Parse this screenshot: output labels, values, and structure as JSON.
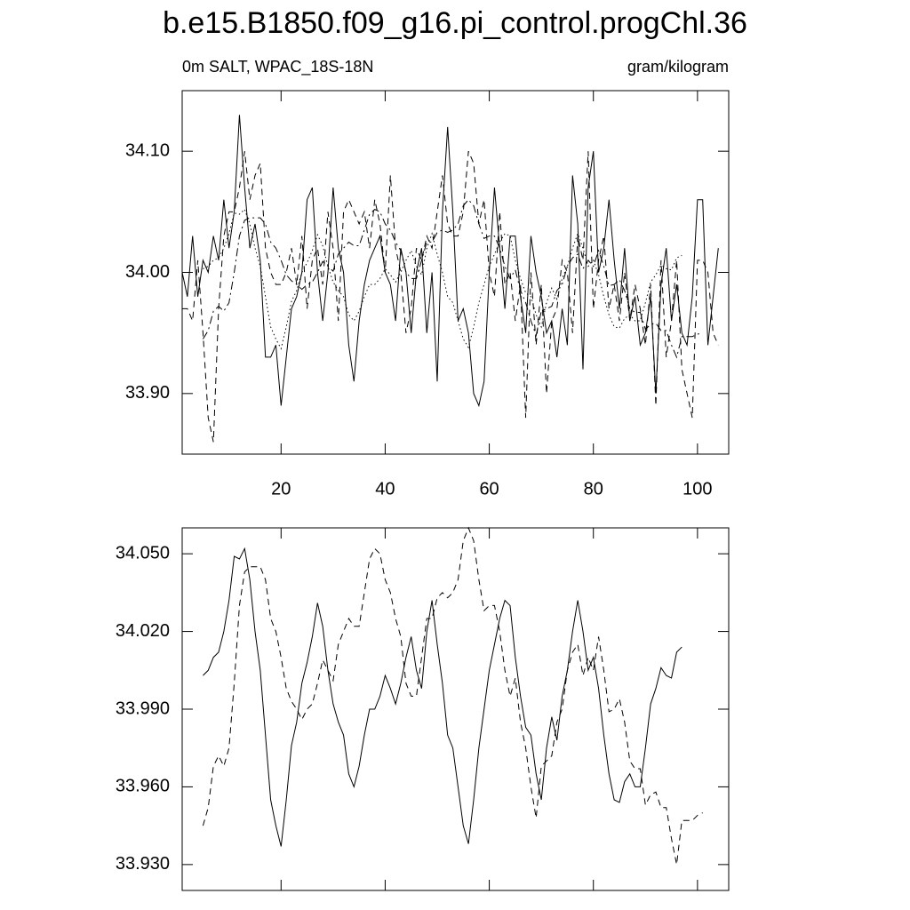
{
  "chart_data": [
    {
      "type": "line",
      "title": "b.e15.B1850.f09_g16.pi_control.progChl.36",
      "subtitle": "0m SALT, WPAC_18S-18N",
      "units": "gram/kilogram",
      "xlim": [
        1,
        106
      ],
      "xticks": [
        20,
        40,
        60,
        80,
        100
      ],
      "ylim": [
        33.85,
        34.15
      ],
      "yticks": [
        {
          "value": 34.1,
          "label": "34.10"
        },
        {
          "value": 34.0,
          "label": "34.00"
        },
        {
          "value": 33.9,
          "label": "33.90"
        }
      ],
      "x": [
        1,
        2,
        3,
        4,
        5,
        6,
        7,
        8,
        9,
        10,
        11,
        12,
        13,
        14,
        15,
        16,
        17,
        18,
        19,
        20,
        21,
        22,
        23,
        24,
        25,
        26,
        27,
        28,
        29,
        30,
        31,
        32,
        33,
        34,
        35,
        36,
        37,
        38,
        39,
        40,
        41,
        42,
        43,
        44,
        45,
        46,
        47,
        48,
        49,
        50,
        51,
        52,
        53,
        54,
        55,
        56,
        57,
        58,
        59,
        60,
        61,
        62,
        63,
        64,
        65,
        66,
        67,
        68,
        69,
        70,
        71,
        72,
        73,
        74,
        75,
        76,
        77,
        78,
        79,
        80,
        81,
        82,
        83,
        84,
        85,
        86,
        87,
        88,
        89,
        90,
        91,
        92,
        93,
        94,
        95,
        96,
        97,
        98,
        99,
        100,
        101,
        102,
        103,
        104
      ],
      "series": [
        {
          "color": "#000000",
          "line_style": "solid",
          "values": [
            34.0,
            33.98,
            34.03,
            33.98,
            34.01,
            34.0,
            34.03,
            34.01,
            34.06,
            34.02,
            34.05,
            34.13,
            34.07,
            34.02,
            34.04,
            34.01,
            33.93,
            33.93,
            33.94,
            33.89,
            33.93,
            33.97,
            33.98,
            34.0,
            34.06,
            34.07,
            34.0,
            33.96,
            34.0,
            34.07,
            34.02,
            34.0,
            33.94,
            33.91,
            33.96,
            33.99,
            34.01,
            34.02,
            34.03,
            34.0,
            33.99,
            33.96,
            34.02,
            34.0,
            33.95,
            34.0,
            34.02,
            33.95,
            34.0,
            33.91,
            34.05,
            34.12,
            34.05,
            33.96,
            33.97,
            33.95,
            33.9,
            33.89,
            33.91,
            34.0,
            34.07,
            34.02,
            33.97,
            34.03,
            34.03,
            33.98,
            33.95,
            34.03,
            34.0,
            33.98,
            33.95,
            33.96,
            33.93,
            33.97,
            33.94,
            34.08,
            34.04,
            33.92,
            34.07,
            34.1,
            34.0,
            34.02,
            34.06,
            34.01,
            33.97,
            34.02,
            33.96,
            33.98,
            33.94,
            33.95,
            33.98,
            33.9,
            33.99,
            34.02,
            33.96,
            33.99,
            33.95,
            33.94,
            33.98,
            34.06,
            34.06,
            33.94,
            33.98,
            34.02
          ]
        },
        {
          "color": "#000000",
          "line_style": "dashed",
          "values": [
            33.97,
            33.97,
            33.96,
            34.01,
            33.95,
            33.88,
            33.86,
            33.97,
            34.03,
            34.05,
            34.05,
            34.07,
            34.1,
            34.06,
            34.08,
            34.09,
            34.02,
            34.0,
            33.99,
            33.99,
            34.0,
            34.02,
            33.99,
            34.03,
            33.97,
            34.01,
            34.02,
            33.99,
            34.05,
            34.02,
            33.96,
            34.05,
            34.06,
            34.05,
            34.04,
            34.05,
            34.02,
            34.06,
            34.04,
            34.0,
            34.08,
            34.02,
            34.0,
            33.95,
            33.97,
            34.02,
            34.01,
            34.03,
            34.02,
            34.05,
            34.08,
            34.04,
            34.03,
            34.03,
            34.05,
            34.1,
            34.09,
            34.04,
            34.06,
            34.0,
            33.98,
            34.05,
            33.99,
            34.0,
            33.96,
            33.99,
            33.88,
            34.0,
            33.94,
            33.99,
            33.9,
            33.96,
            33.97,
            34.01,
            34.0,
            33.95,
            34.03,
            34.01,
            34.1,
            33.97,
            34.01,
            34.03,
            33.97,
            33.99,
            33.96,
            34.0,
            33.96,
            33.99,
            33.97,
            33.94,
            33.99,
            33.89,
            34.01,
            33.93,
            33.96,
            34.01,
            33.92,
            33.9,
            33.88,
            34.01,
            34.01,
            34.0,
            33.95,
            33.94
          ]
        },
        {
          "color": "#000000",
          "line_style": "dotted",
          "values": [
            null,
            null,
            null,
            null,
            34.003,
            34.005,
            34.01,
            34.012,
            34.02,
            34.032,
            34.049,
            34.048,
            34.052,
            34.04,
            34.02,
            34.005,
            33.98,
            33.955,
            33.945,
            33.937,
            33.955,
            33.976,
            33.985,
            34.0,
            34.008,
            34.018,
            34.031,
            34.022,
            34.005,
            33.992,
            33.985,
            33.98,
            33.965,
            33.96,
            33.968,
            33.98,
            33.99,
            33.99,
            33.995,
            34.003,
            33.998,
            33.992,
            34.0,
            34.01,
            34.018,
            34.005,
            33.998,
            34.02,
            34.032,
            34.015,
            34.0,
            33.98,
            33.975,
            33.96,
            33.945,
            33.938,
            33.955,
            33.975,
            33.99,
            34.005,
            34.015,
            34.025,
            34.032,
            34.03,
            34.01,
            33.995,
            33.983,
            33.98,
            33.965,
            33.955,
            33.975,
            33.987,
            33.978,
            33.995,
            34.005,
            34.02,
            34.032,
            34.02,
            34.005,
            34.01,
            33.998,
            33.98,
            33.965,
            33.955,
            33.954,
            33.962,
            33.965,
            33.96,
            33.96,
            33.975,
            33.992,
            33.998,
            34.006,
            34.003,
            34.002,
            34.012,
            34.014,
            null,
            null,
            null,
            null,
            null,
            null,
            null
          ]
        },
        {
          "color": "#000000",
          "line_style": "dashdot",
          "values": [
            null,
            null,
            null,
            null,
            33.945,
            33.952,
            33.968,
            33.972,
            33.968,
            33.975,
            34.0,
            34.03,
            34.043,
            34.045,
            34.045,
            34.045,
            34.04,
            34.025,
            34.02,
            34.01,
            33.998,
            33.993,
            33.99,
            33.986,
            33.99,
            33.992,
            34.0,
            34.009,
            34.005,
            34.001,
            34.015,
            34.02,
            34.025,
            34.022,
            34.022,
            34.035,
            34.048,
            34.052,
            34.05,
            34.04,
            34.035,
            34.025,
            34.018,
            34.0,
            33.995,
            33.995,
            34.01,
            34.025,
            34.025,
            34.033,
            34.035,
            34.033,
            34.035,
            34.04,
            34.055,
            34.06,
            34.055,
            34.04,
            34.028,
            34.03,
            34.03,
            34.02,
            34.005,
            33.995,
            34.002,
            33.985,
            33.975,
            33.96,
            33.948,
            33.968,
            33.97,
            33.972,
            33.985,
            33.99,
            34.005,
            34.012,
            34.015,
            34.003,
            34.01,
            34.005,
            34.018,
            34.005,
            33.989,
            33.99,
            33.994,
            33.985,
            33.97,
            33.967,
            33.967,
            33.953,
            33.957,
            33.958,
            33.952,
            33.952,
            33.94,
            33.93,
            33.947,
            33.947,
            33.947,
            33.949,
            33.95,
            null,
            null,
            null
          ]
        }
      ]
    },
    {
      "type": "line",
      "xlim": [
        1,
        106
      ],
      "xticks": [
        20,
        40,
        60,
        80,
        100
      ],
      "ylim": [
        33.92,
        34.06
      ],
      "yticks": [
        {
          "value": 34.05,
          "label": "34.050"
        },
        {
          "value": 34.02,
          "label": "34.020"
        },
        {
          "value": 33.99,
          "label": "33.990"
        },
        {
          "value": 33.96,
          "label": "33.960"
        },
        {
          "value": 33.93,
          "label": "33.930"
        }
      ],
      "x": [
        1,
        2,
        3,
        4,
        5,
        6,
        7,
        8,
        9,
        10,
        11,
        12,
        13,
        14,
        15,
        16,
        17,
        18,
        19,
        20,
        21,
        22,
        23,
        24,
        25,
        26,
        27,
        28,
        29,
        30,
        31,
        32,
        33,
        34,
        35,
        36,
        37,
        38,
        39,
        40,
        41,
        42,
        43,
        44,
        45,
        46,
        47,
        48,
        49,
        50,
        51,
        52,
        53,
        54,
        55,
        56,
        57,
        58,
        59,
        60,
        61,
        62,
        63,
        64,
        65,
        66,
        67,
        68,
        69,
        70,
        71,
        72,
        73,
        74,
        75,
        76,
        77,
        78,
        79,
        80,
        81,
        82,
        83,
        84,
        85,
        86,
        87,
        88,
        89,
        90,
        91,
        92,
        93,
        94,
        95,
        96,
        97,
        98,
        99,
        100,
        101,
        102,
        103,
        104
      ],
      "series": [
        {
          "color": "#000000",
          "line_style": "solid",
          "values": [
            null,
            null,
            null,
            null,
            34.003,
            34.005,
            34.01,
            34.012,
            34.02,
            34.032,
            34.049,
            34.048,
            34.052,
            34.04,
            34.02,
            34.005,
            33.98,
            33.955,
            33.945,
            33.937,
            33.955,
            33.976,
            33.985,
            34.0,
            34.008,
            34.018,
            34.031,
            34.022,
            34.005,
            33.992,
            33.985,
            33.98,
            33.965,
            33.96,
            33.968,
            33.98,
            33.99,
            33.99,
            33.995,
            34.003,
            33.998,
            33.992,
            34.0,
            34.01,
            34.018,
            34.005,
            33.998,
            34.02,
            34.032,
            34.015,
            34.0,
            33.98,
            33.975,
            33.96,
            33.945,
            33.938,
            33.955,
            33.975,
            33.99,
            34.005,
            34.015,
            34.025,
            34.032,
            34.03,
            34.01,
            33.995,
            33.983,
            33.98,
            33.965,
            33.955,
            33.975,
            33.987,
            33.978,
            33.995,
            34.005,
            34.02,
            34.032,
            34.02,
            34.005,
            34.01,
            33.998,
            33.98,
            33.965,
            33.955,
            33.954,
            33.962,
            33.965,
            33.96,
            33.96,
            33.975,
            33.992,
            33.998,
            34.006,
            34.003,
            34.002,
            34.012,
            34.014,
            null,
            null,
            null,
            null,
            null,
            null,
            null
          ]
        },
        {
          "color": "#000000",
          "line_style": "dashed",
          "values": [
            null,
            null,
            null,
            null,
            33.945,
            33.952,
            33.968,
            33.972,
            33.968,
            33.975,
            34.0,
            34.03,
            34.043,
            34.045,
            34.045,
            34.045,
            34.04,
            34.025,
            34.02,
            34.01,
            33.998,
            33.993,
            33.99,
            33.986,
            33.99,
            33.992,
            34.0,
            34.009,
            34.005,
            34.001,
            34.015,
            34.02,
            34.025,
            34.022,
            34.022,
            34.035,
            34.048,
            34.052,
            34.05,
            34.04,
            34.035,
            34.025,
            34.018,
            34.0,
            33.995,
            33.995,
            34.01,
            34.025,
            34.025,
            34.033,
            34.035,
            34.033,
            34.035,
            34.04,
            34.055,
            34.06,
            34.055,
            34.04,
            34.028,
            34.03,
            34.03,
            34.02,
            34.005,
            33.995,
            34.002,
            33.985,
            33.975,
            33.96,
            33.948,
            33.968,
            33.97,
            33.972,
            33.985,
            33.99,
            34.005,
            34.012,
            34.015,
            34.003,
            34.01,
            34.005,
            34.018,
            34.005,
            33.989,
            33.99,
            33.994,
            33.985,
            33.97,
            33.967,
            33.967,
            33.953,
            33.957,
            33.958,
            33.952,
            33.952,
            33.94,
            33.93,
            33.947,
            33.947,
            33.947,
            33.949,
            33.95,
            null,
            null,
            null
          ]
        }
      ]
    }
  ]
}
